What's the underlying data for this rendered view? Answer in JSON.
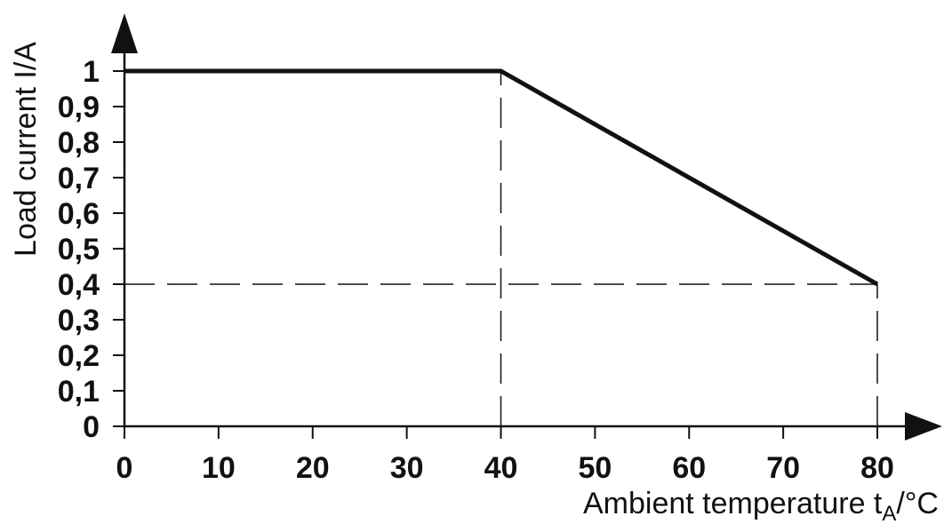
{
  "chart_data": {
    "type": "line",
    "xlabel": "Ambient temperature t",
    "xlabel_sub": "A",
    "xlabel_unit": "/°C",
    "ylabel": "Load current I/A",
    "xlim": [
      0,
      80
    ],
    "ylim": [
      0,
      1
    ],
    "x_ticks": [
      0,
      10,
      20,
      30,
      40,
      50,
      60,
      70,
      80
    ],
    "x_tick_labels": [
      "0",
      "10",
      "20",
      "30",
      "40",
      "50",
      "60",
      "70",
      "80"
    ],
    "y_ticks": [
      0,
      0.1,
      0.2,
      0.3,
      0.4,
      0.5,
      0.6,
      0.7,
      0.8,
      0.9,
      1
    ],
    "y_tick_labels": [
      "0",
      "0,1",
      "0,2",
      "0,3",
      "0,4",
      "0,5",
      "0,6",
      "0,7",
      "0,8",
      "0,9",
      "1"
    ],
    "series": [
      {
        "x": [
          0,
          40,
          80
        ],
        "y": [
          1,
          1,
          0.4
        ]
      }
    ],
    "reference_lines": [
      {
        "orientation": "vertical",
        "x": 40,
        "y_from": 0,
        "y_to": 1
      },
      {
        "orientation": "vertical",
        "x": 80,
        "y_from": 0,
        "y_to": 0.4
      },
      {
        "orientation": "horizontal",
        "y": 0.4,
        "x_from": 0,
        "x_to": 80
      }
    ],
    "grid": false,
    "line_color": "#111111"
  }
}
